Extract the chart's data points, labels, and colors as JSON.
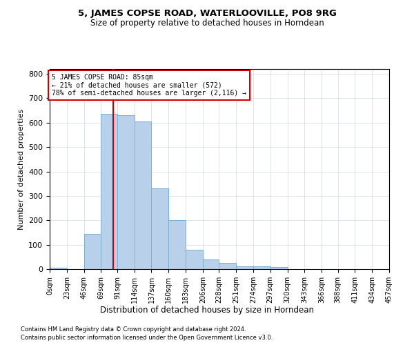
{
  "title1": "5, JAMES COPSE ROAD, WATERLOOVILLE, PO8 9RG",
  "title2": "Size of property relative to detached houses in Horndean",
  "xlabel": "Distribution of detached houses by size in Horndean",
  "ylabel": "Number of detached properties",
  "bar_data": [
    [
      0,
      23,
      5
    ],
    [
      23,
      46,
      0
    ],
    [
      46,
      69,
      145
    ],
    [
      69,
      91,
      635
    ],
    [
      91,
      114,
      630
    ],
    [
      114,
      137,
      605
    ],
    [
      137,
      160,
      330
    ],
    [
      160,
      183,
      200
    ],
    [
      183,
      206,
      80
    ],
    [
      206,
      228,
      40
    ],
    [
      228,
      251,
      25
    ],
    [
      251,
      274,
      12
    ],
    [
      274,
      297,
      12
    ],
    [
      297,
      320,
      8
    ]
  ],
  "bin_edges": [
    0,
    23,
    46,
    69,
    91,
    114,
    137,
    160,
    183,
    206,
    228,
    251,
    274,
    297,
    320,
    343,
    366,
    388,
    411,
    434,
    457
  ],
  "bar_color": "#b8d0ea",
  "bar_edge_color": "#7aafd4",
  "property_size": 85,
  "property_line_color": "#cc0000",
  "annotation_text": "5 JAMES COPSE ROAD: 85sqm\n← 21% of detached houses are smaller (572)\n78% of semi-detached houses are larger (2,116) →",
  "annotation_box_color": "#ffffff",
  "annotation_border_color": "#cc0000",
  "ylim": [
    0,
    820
  ],
  "yticks": [
    0,
    100,
    200,
    300,
    400,
    500,
    600,
    700,
    800
  ],
  "tick_labels": [
    "0sqm",
    "23sqm",
    "46sqm",
    "69sqm",
    "91sqm",
    "114sqm",
    "137sqm",
    "160sqm",
    "183sqm",
    "206sqm",
    "228sqm",
    "251sqm",
    "274sqm",
    "297sqm",
    "320sqm",
    "343sqm",
    "366sqm",
    "388sqm",
    "411sqm",
    "434sqm",
    "457sqm"
  ],
  "footnote1": "Contains HM Land Registry data © Crown copyright and database right 2024.",
  "footnote2": "Contains public sector information licensed under the Open Government Licence v3.0.",
  "background_color": "#ffffff",
  "grid_color": "#d0d8e8"
}
